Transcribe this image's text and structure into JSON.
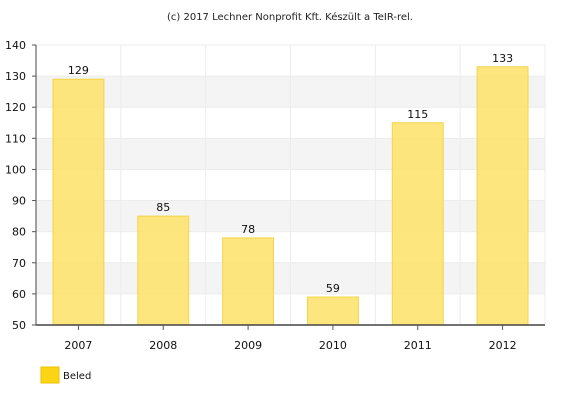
{
  "credit": "(c) 2017 Lechner Nonprofit Kft. Készült a TeIR-rel.",
  "chart_data": {
    "type": "bar",
    "categories": [
      "2007",
      "2008",
      "2009",
      "2010",
      "2011",
      "2012"
    ],
    "series": [
      {
        "name": "Beled",
        "values": [
          129,
          85,
          78,
          59,
          115,
          133
        ],
        "color": "#fde36f"
      }
    ],
    "data_labels": [
      "129",
      "85",
      "78",
      "59",
      "115",
      "133"
    ],
    "yticks": [
      50,
      60,
      70,
      80,
      90,
      100,
      110,
      120,
      130,
      140
    ],
    "ylim": [
      50,
      140
    ],
    "grid": true,
    "legend": "bottom-left"
  }
}
